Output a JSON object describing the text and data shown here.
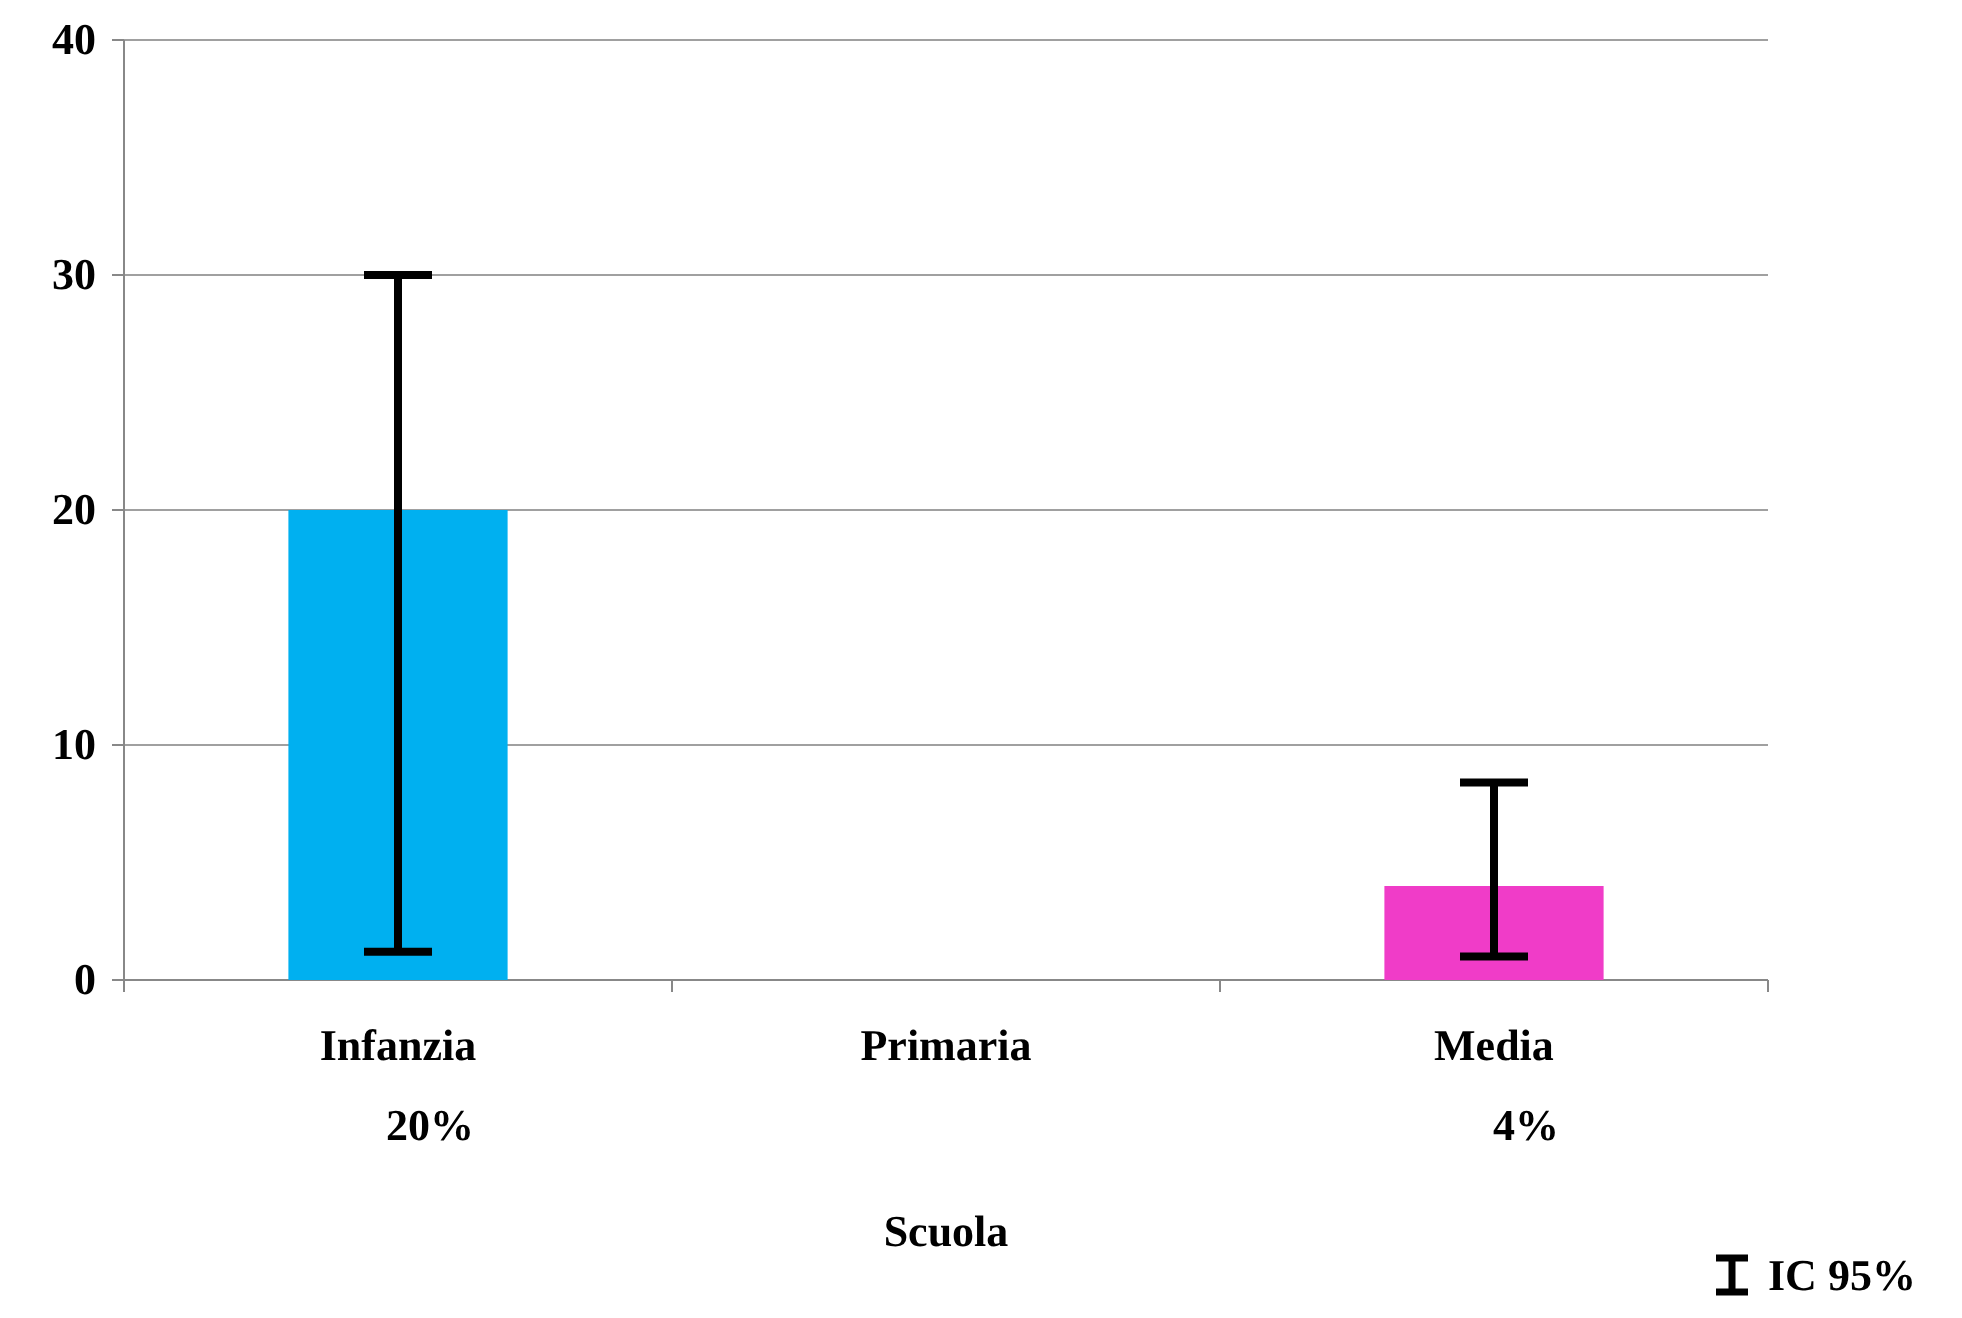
{
  "chart_data": {
    "type": "bar",
    "xlabel": "Scuola",
    "categories": [
      "Infanzia",
      "Primaria",
      "Media"
    ],
    "values": [
      20,
      0,
      4
    ],
    "colors": [
      "#00b0f0",
      "#4f81bd",
      "#f03cc8"
    ],
    "errors": [
      [
        1.2,
        30
      ],
      null,
      [
        1.0,
        8.4
      ]
    ],
    "value_labels": [
      "20%",
      null,
      "4%"
    ],
    "ylim": [
      0,
      40
    ],
    "yticks": [
      0,
      10,
      20,
      30,
      40
    ],
    "grid": "y",
    "annotations": [
      "IC 95%"
    ]
  }
}
